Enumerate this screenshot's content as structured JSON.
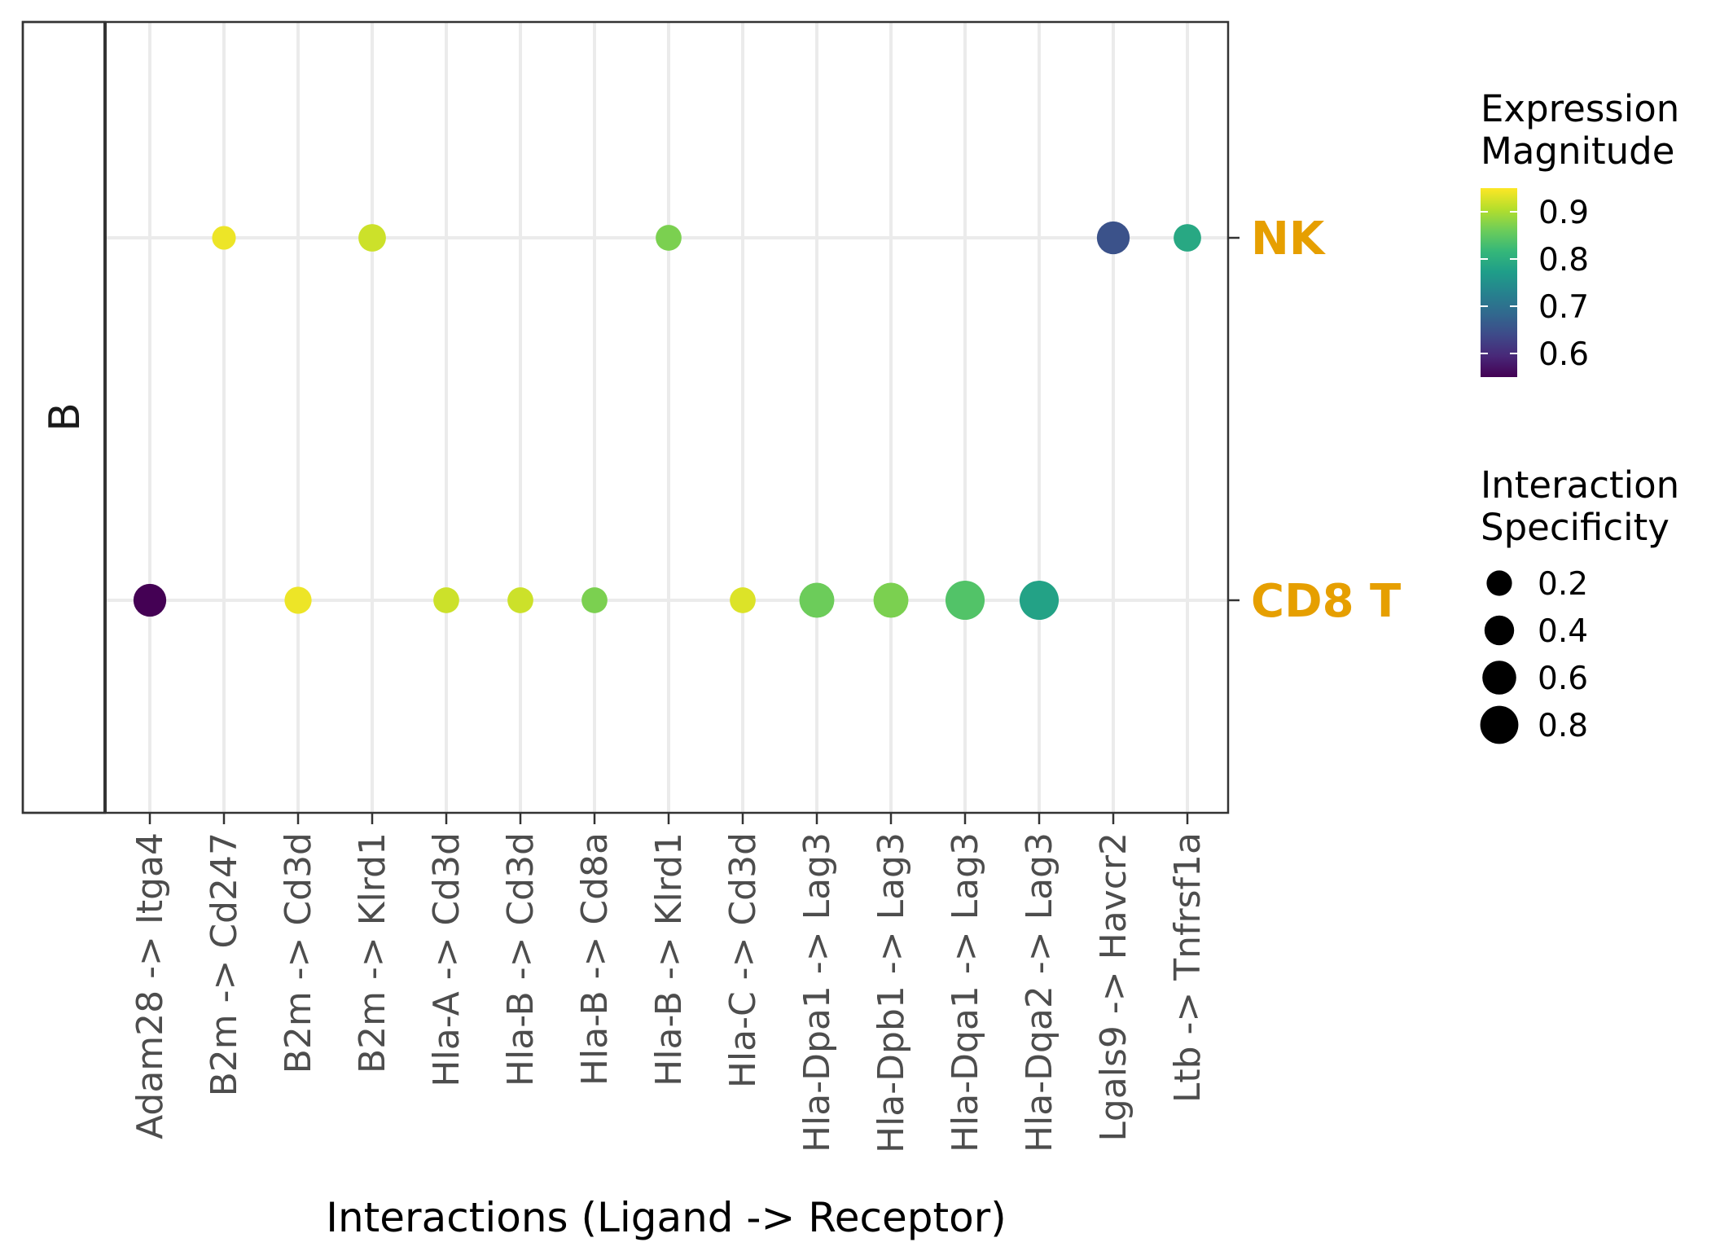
{
  "chart_data": {
    "type": "scatter",
    "subtype": "dotplot",
    "facet_label": "B",
    "xlabel": "Interactions (Ligand -> Receptor)",
    "ylabel": "",
    "categories": [
      "Adam28 -> Itga4",
      "B2m -> Cd247",
      "B2m -> Cd3d",
      "B2m -> Klrd1",
      "Hla-A -> Cd3d",
      "Hla-B -> Cd3d",
      "Hla-B -> Cd8a",
      "Hla-B -> Klrd1",
      "Hla-C -> Cd3d",
      "Hla-Dpa1 -> Lag3",
      "Hla-Dpb1 -> Lag3",
      "Hla-Dqa1 -> Lag3",
      "Hla-Dqa2 -> Lag3",
      "Lgals9 -> Havcr2",
      "Ltb -> Tnfrsf1a"
    ],
    "y_categories": [
      "CD8 T",
      "NK"
    ],
    "y_label_color": "#E69F00",
    "grid": true,
    "legend_position": "right",
    "points": [
      {
        "x": "B2m -> Cd247",
        "y": "NK",
        "magnitude": 0.94,
        "specificity": 0.12
      },
      {
        "x": "B2m -> Klrd1",
        "y": "NK",
        "magnitude": 0.92,
        "specificity": 0.3
      },
      {
        "x": "Hla-B -> Klrd1",
        "y": "NK",
        "magnitude": 0.87,
        "specificity": 0.22
      },
      {
        "x": "Lgals9 -> Havcr2",
        "y": "NK",
        "magnitude": 0.65,
        "specificity": 0.55
      },
      {
        "x": "Ltb -> Tnfrsf1a",
        "y": "NK",
        "magnitude": 0.79,
        "specificity": 0.3
      },
      {
        "x": "Adam28 -> Itga4",
        "y": "CD8 T",
        "magnitude": 0.55,
        "specificity": 0.55
      },
      {
        "x": "B2m -> Cd3d",
        "y": "CD8 T",
        "magnitude": 0.94,
        "specificity": 0.28
      },
      {
        "x": "Hla-A -> Cd3d",
        "y": "CD8 T",
        "magnitude": 0.92,
        "specificity": 0.22
      },
      {
        "x": "Hla-B -> Cd3d",
        "y": "CD8 T",
        "magnitude": 0.92,
        "specificity": 0.22
      },
      {
        "x": "Hla-B -> Cd8a",
        "y": "CD8 T",
        "magnitude": 0.87,
        "specificity": 0.22
      },
      {
        "x": "Hla-C -> Cd3d",
        "y": "CD8 T",
        "magnitude": 0.93,
        "specificity": 0.22
      },
      {
        "x": "Hla-Dpa1 -> Lag3",
        "y": "CD8 T",
        "magnitude": 0.86,
        "specificity": 0.65
      },
      {
        "x": "Hla-Dpb1 -> Lag3",
        "y": "CD8 T",
        "magnitude": 0.87,
        "specificity": 0.65
      },
      {
        "x": "Hla-Dqa1 -> Lag3",
        "y": "CD8 T",
        "magnitude": 0.84,
        "specificity": 0.85
      },
      {
        "x": "Hla-Dqa2 -> Lag3",
        "y": "CD8 T",
        "magnitude": 0.78,
        "specificity": 0.85
      }
    ],
    "legend_color": {
      "title_lines": [
        "Expression",
        "Magnitude"
      ],
      "range": [
        0.55,
        0.95
      ],
      "ticks": [
        0.6,
        0.7,
        0.8,
        0.9
      ],
      "tick_labels": [
        "0.6",
        "0.7",
        "0.8",
        "0.9"
      ],
      "palette": [
        "#440154",
        "#482878",
        "#3E4A89",
        "#31688E",
        "#26828E",
        "#1F9E89",
        "#35B779",
        "#6DCD59",
        "#B4DE2C",
        "#FDE725"
      ]
    },
    "legend_size": {
      "title_lines": [
        "Interaction",
        "Specificity"
      ],
      "values": [
        0.2,
        0.4,
        0.6,
        0.8
      ],
      "labels": [
        "0.2",
        "0.4",
        "0.6",
        "0.8"
      ]
    }
  }
}
